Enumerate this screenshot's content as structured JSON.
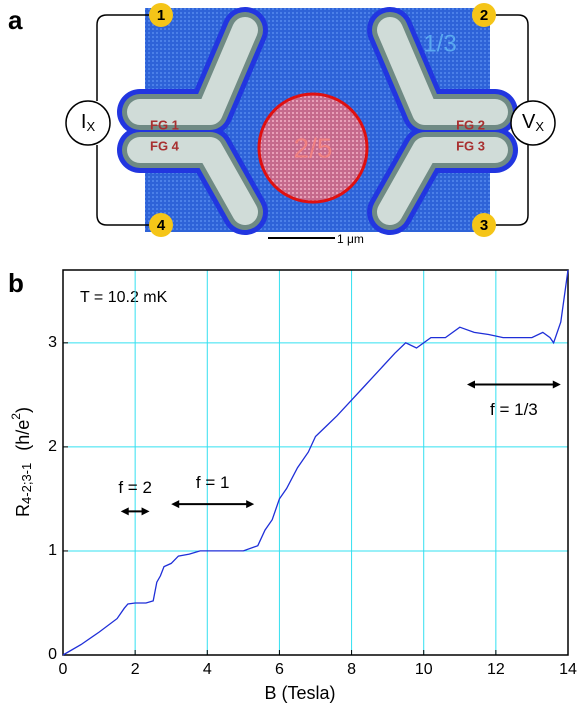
{
  "panel_a": {
    "label": "a",
    "terminals": [
      "1",
      "2",
      "3",
      "4"
    ],
    "current_source": {
      "symbol": "I",
      "subscript": "X"
    },
    "voltmeter": {
      "symbol": "V",
      "subscript": "X"
    },
    "regions": [
      "1/3",
      "2/5"
    ],
    "gates": [
      "FG 1",
      "FG 2",
      "FG 3",
      "FG 4"
    ],
    "scale_bar": "1 μm"
  },
  "chart_data": {
    "type": "line",
    "panel_label": "b",
    "annotation": "T = 10.2 mK",
    "plateaus": [
      "f = 2",
      "f = 1",
      "f = 1/3"
    ],
    "x_label": "B (Tesla)",
    "y_label": {
      "symbol": "R",
      "subscript": "4-2;3-1",
      "unit_open": "(h/e",
      "unit_power": "2",
      "unit_close": ")"
    },
    "x": [
      0,
      0.5,
      1,
      1.5,
      1.7,
      1.8,
      2.0,
      2.3,
      2.5,
      2.6,
      2.7,
      2.8,
      3.0,
      3.2,
      3.5,
      3.8,
      4.2,
      4.6,
      5.0,
      5.4,
      5.6,
      5.8,
      6.0,
      6.2,
      6.5,
      6.8,
      7.0,
      7.3,
      7.6,
      8.0,
      8.4,
      8.8,
      9.2,
      9.5,
      9.8,
      10.2,
      10.6,
      11.0,
      11.4,
      11.8,
      12.2,
      12.6,
      13.0,
      13.3,
      13.5,
      13.6,
      13.8,
      14.0
    ],
    "series": [
      {
        "color": "#1f2fd8",
        "values": [
          0,
          0.1,
          0.22,
          0.35,
          0.45,
          0.49,
          0.5,
          0.5,
          0.52,
          0.7,
          0.76,
          0.85,
          0.88,
          0.95,
          0.97,
          1.0,
          1.0,
          1.0,
          1.0,
          1.05,
          1.2,
          1.3,
          1.5,
          1.6,
          1.8,
          1.95,
          2.1,
          2.2,
          2.3,
          2.45,
          2.6,
          2.75,
          2.9,
          3.0,
          2.95,
          3.05,
          3.05,
          3.15,
          3.1,
          3.08,
          3.05,
          3.05,
          3.05,
          3.1,
          3.05,
          3.0,
          3.2,
          3.7
        ]
      }
    ],
    "xlim": [
      0,
      14
    ],
    "ylim": [
      0,
      3.7
    ],
    "xticks": [
      0,
      2,
      4,
      6,
      8,
      10,
      12,
      14
    ],
    "yticks": [
      0,
      1,
      2,
      3
    ],
    "grid": true,
    "grid_color": "#33e0f0"
  }
}
